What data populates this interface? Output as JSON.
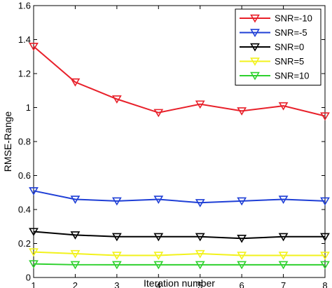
{
  "chart_data": {
    "type": "line",
    "xlabel": "Iteration number",
    "ylabel": "RMSE-Range",
    "xlim": [
      1,
      8
    ],
    "ylim": [
      0,
      1.6
    ],
    "xticks": [
      1,
      2,
      3,
      4,
      5,
      6,
      7,
      8
    ],
    "yticks": [
      0,
      0.2,
      0.4,
      0.6,
      0.8,
      1,
      1.2,
      1.4,
      1.6
    ],
    "ytick_labels": [
      "0",
      "0.2",
      "0.4",
      "0.6",
      "0.8",
      "1",
      "1.2",
      "1.4",
      "1.6"
    ],
    "grid": false,
    "legend_position": "top-right",
    "marker": "triangle-down",
    "x": [
      1,
      2,
      3,
      4,
      5,
      6,
      7,
      8
    ],
    "series": [
      {
        "name": "SNR=-10",
        "color": "#e8202a",
        "values": [
          1.36,
          1.15,
          1.05,
          0.97,
          1.02,
          0.98,
          1.01,
          0.95
        ]
      },
      {
        "name": "SNR=-5",
        "color": "#1f3fd6",
        "values": [
          0.51,
          0.46,
          0.45,
          0.46,
          0.44,
          0.45,
          0.46,
          0.45
        ]
      },
      {
        "name": "SNR=0",
        "color": "#000000",
        "values": [
          0.27,
          0.25,
          0.24,
          0.24,
          0.24,
          0.23,
          0.24,
          0.24
        ]
      },
      {
        "name": "SNR=5",
        "color": "#f2f21c",
        "values": [
          0.15,
          0.14,
          0.13,
          0.13,
          0.14,
          0.13,
          0.13,
          0.13
        ]
      },
      {
        "name": "SNR=10",
        "color": "#2ed12e",
        "values": [
          0.08,
          0.075,
          0.075,
          0.075,
          0.075,
          0.075,
          0.075,
          0.075
        ]
      }
    ]
  }
}
